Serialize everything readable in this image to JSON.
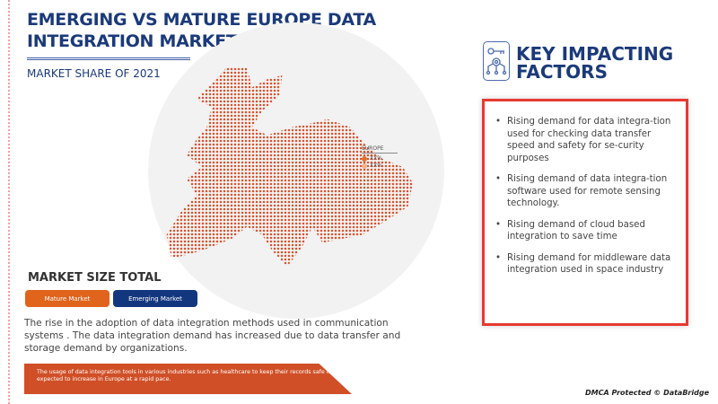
{
  "header": {
    "title": "EMERGING VS MATURE EUROPE DATA INTEGRATION MARKET",
    "subtitle": "MARKET SHARE OF 2021"
  },
  "legend": {
    "title": "EUROPE",
    "items": [
      {
        "label": "XX%",
        "color": "#e0702a"
      },
      {
        "label": "XX%",
        "color": "#f5b08a"
      }
    ]
  },
  "market_size": {
    "title": "MARKET SIZE TOTAL",
    "buttons": [
      {
        "label": "Mature Market",
        "color": "#e0641c"
      },
      {
        "label": "Emerging Market",
        "color": "#13377f"
      }
    ]
  },
  "description": "The rise in the adoption of data integration methods  used in communication systems . The data integration demand has increased due to data transfer and storage demand by organizations.",
  "banner": "The usage of data integration tools in various industries such as healthcare to keep their records safe is expected to increase in Europe at a rapid pace.",
  "factors": {
    "title": "KEY IMPACTING FACTORS",
    "items": [
      "Rising demand for data integra-tion used for checking data transfer speed and safety for se-curity purposes",
      "Rising demand of data integra-tion software used for remote sensing technology.",
      "Rising demand of cloud based integration to save time",
      "Rising demand for middleware data integration used in space industry"
    ]
  },
  "footer": "DMCA Protected © DataBridge"
}
